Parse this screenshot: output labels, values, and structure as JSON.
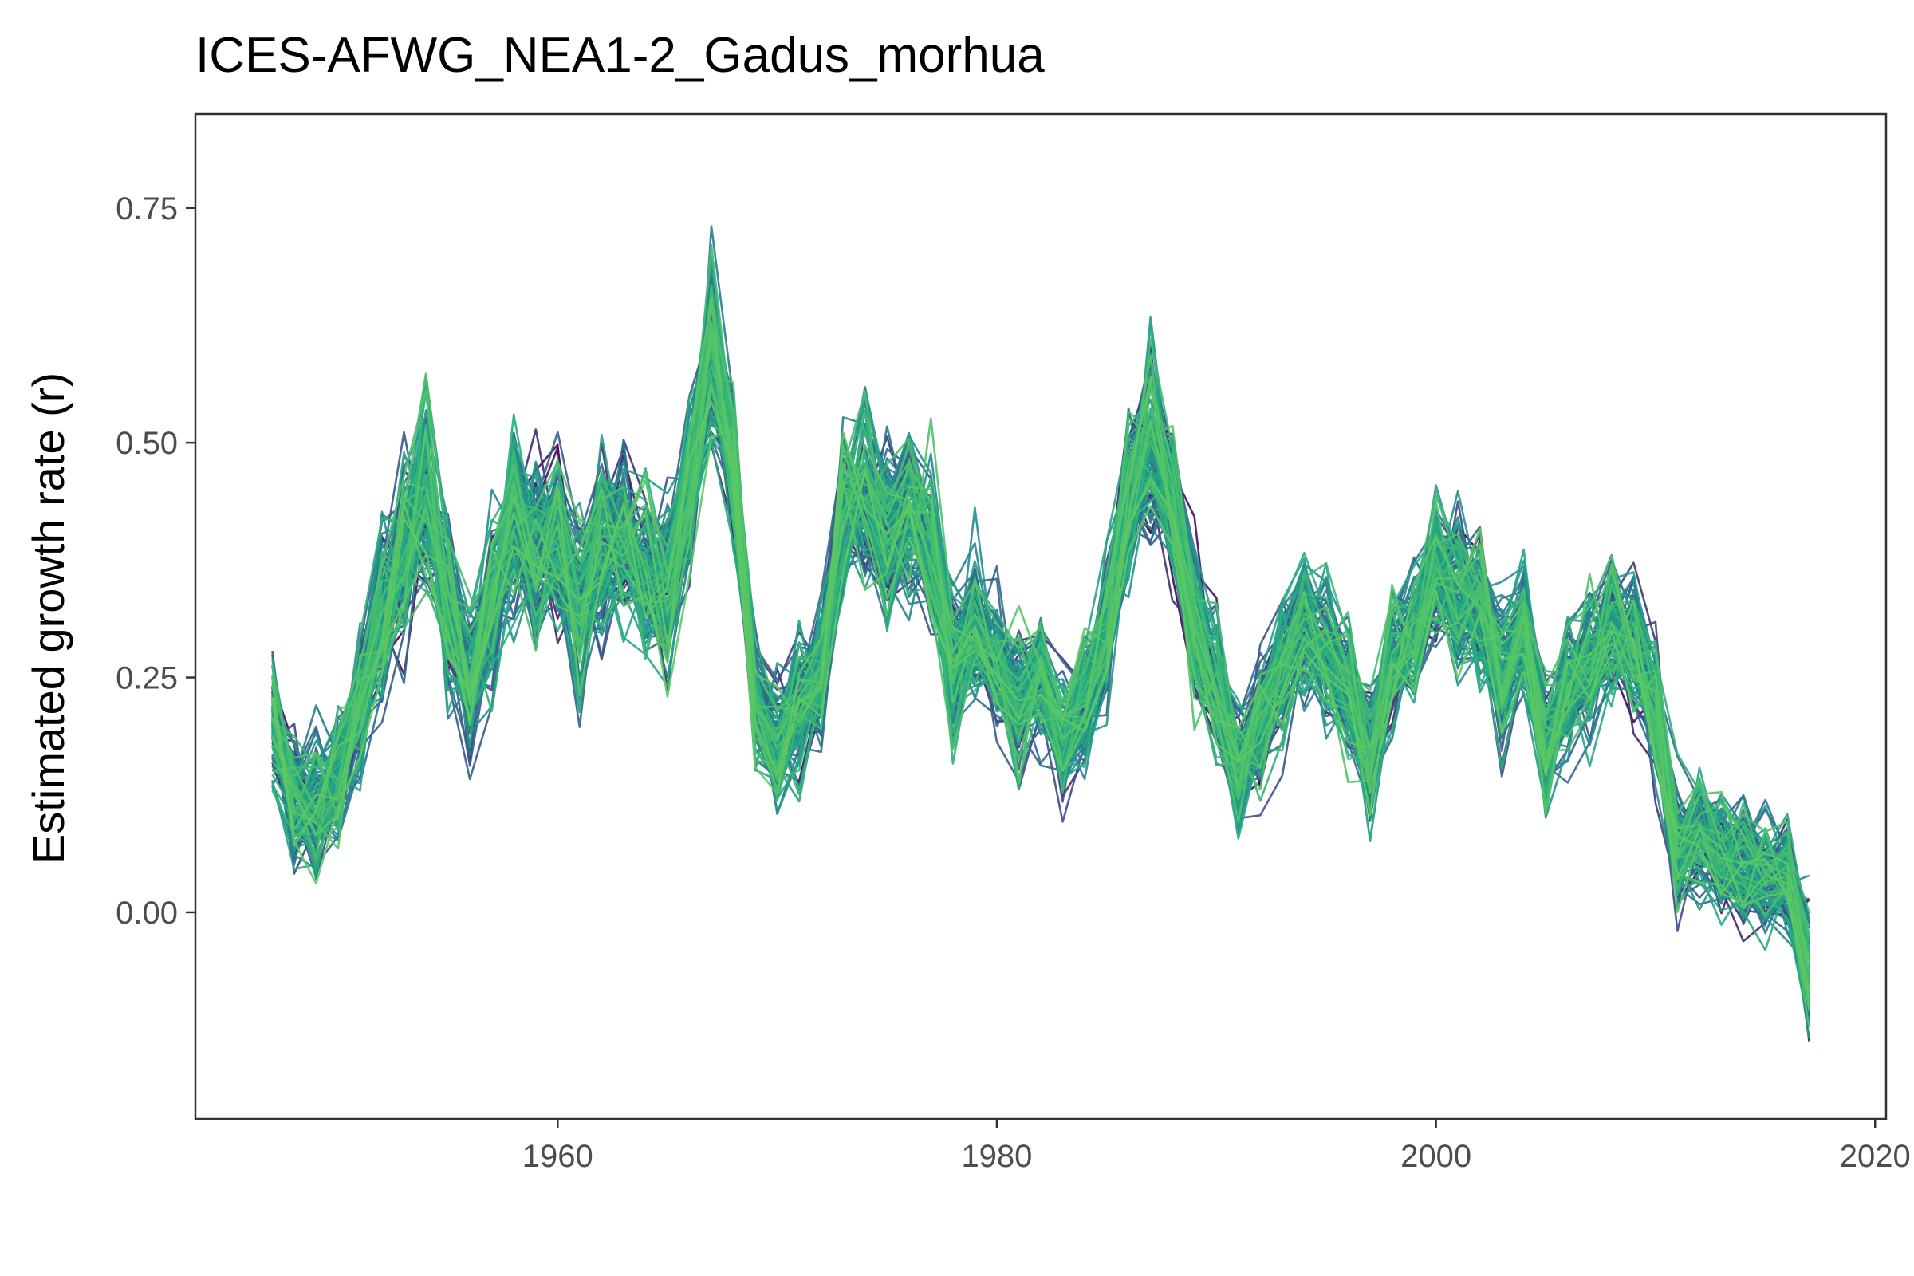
{
  "chart_data": {
    "type": "line",
    "title": "ICES-AFWG_NEA1-2_Gadus_morhua",
    "xlabel": "",
    "ylabel": "Estimated growth rate (r)",
    "xlim": [
      1943.5,
      2020.5
    ],
    "ylim": [
      -0.22,
      0.85
    ],
    "x_ticks": [
      1960,
      1980,
      2000,
      2020
    ],
    "x_tick_labels": [
      "1960",
      "1980",
      "2000",
      "2020"
    ],
    "y_ticks": [
      0,
      0.25,
      0.5,
      0.75
    ],
    "y_tick_labels": [
      "0.00",
      "0.25",
      "0.50",
      "0.75"
    ],
    "grid": false,
    "legend": "none",
    "palette": [
      "#440154",
      "#3b528b",
      "#2c728e",
      "#21918c",
      "#28ae80",
      "#5ec962"
    ],
    "n_series": 120,
    "x": [
      1947,
      1948,
      1949,
      1950,
      1951,
      1952,
      1953,
      1954,
      1955,
      1956,
      1957,
      1958,
      1959,
      1960,
      1961,
      1962,
      1963,
      1964,
      1965,
      1966,
      1967,
      1968,
      1969,
      1970,
      1971,
      1972,
      1973,
      1974,
      1975,
      1976,
      1977,
      1978,
      1979,
      1980,
      1981,
      1982,
      1983,
      1984,
      1985,
      1986,
      1987,
      1988,
      1989,
      1990,
      1991,
      1992,
      1993,
      1994,
      1995,
      1996,
      1997,
      1998,
      1999,
      2000,
      2001,
      2002,
      2003,
      2004,
      2005,
      2006,
      2007,
      2008,
      2009,
      2010,
      2011,
      2012,
      2013,
      2014,
      2015,
      2016,
      2017
    ],
    "center": [
      0.2,
      0.12,
      0.1,
      0.14,
      0.22,
      0.32,
      0.38,
      0.44,
      0.32,
      0.24,
      0.32,
      0.42,
      0.38,
      0.4,
      0.33,
      0.38,
      0.4,
      0.36,
      0.34,
      0.45,
      0.6,
      0.48,
      0.22,
      0.18,
      0.22,
      0.25,
      0.42,
      0.45,
      0.4,
      0.42,
      0.38,
      0.26,
      0.3,
      0.26,
      0.22,
      0.25,
      0.18,
      0.22,
      0.3,
      0.44,
      0.5,
      0.44,
      0.3,
      0.24,
      0.16,
      0.2,
      0.26,
      0.3,
      0.28,
      0.24,
      0.16,
      0.26,
      0.3,
      0.36,
      0.34,
      0.32,
      0.25,
      0.3,
      0.18,
      0.24,
      0.26,
      0.3,
      0.28,
      0.22,
      0.06,
      0.08,
      0.06,
      0.05,
      0.04,
      0.04,
      -0.06
    ],
    "spread": [
      0.06,
      0.06,
      0.07,
      0.06,
      0.07,
      0.08,
      0.09,
      0.1,
      0.08,
      0.08,
      0.08,
      0.09,
      0.08,
      0.08,
      0.08,
      0.09,
      0.08,
      0.08,
      0.08,
      0.08,
      0.09,
      0.07,
      0.06,
      0.06,
      0.06,
      0.07,
      0.08,
      0.08,
      0.08,
      0.08,
      0.07,
      0.07,
      0.07,
      0.06,
      0.06,
      0.06,
      0.06,
      0.06,
      0.07,
      0.07,
      0.09,
      0.07,
      0.07,
      0.06,
      0.06,
      0.06,
      0.06,
      0.07,
      0.06,
      0.06,
      0.06,
      0.06,
      0.06,
      0.07,
      0.07,
      0.06,
      0.06,
      0.06,
      0.06,
      0.06,
      0.06,
      0.07,
      0.07,
      0.06,
      0.05,
      0.05,
      0.05,
      0.05,
      0.05,
      0.05,
      0.06
    ]
  }
}
